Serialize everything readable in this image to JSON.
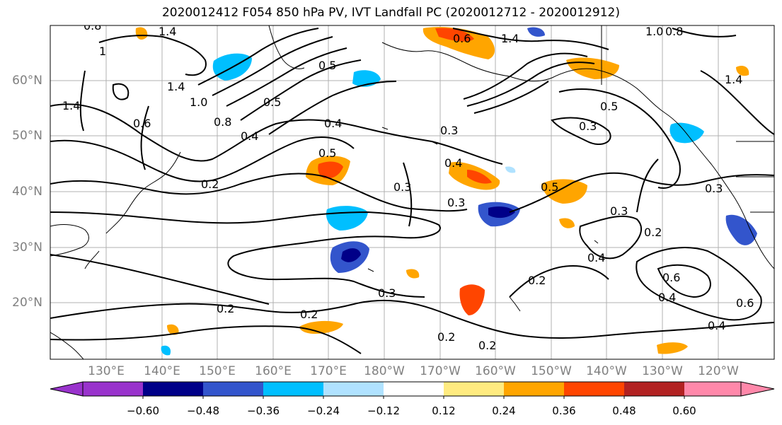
{
  "title": "2020012412 F054 850 hPa PV, IVT Landfall PC (2020012712 - 2020012912)",
  "lat_labels": [
    "60°N",
    "50°N",
    "40°N",
    "30°N",
    "20°N"
  ],
  "lon_labels": [
    "130°E",
    "140°E",
    "150°E",
    "160°E",
    "170°E",
    "180°W",
    "170°W",
    "160°W",
    "150°W",
    "140°W",
    "130°W",
    "120°W"
  ],
  "colorbar": {
    "colors": [
      "#9933cc",
      "#000088",
      "#3355cc",
      "#00bfff",
      "#b0e2ff",
      "#ffffff",
      "#ffeb80",
      "#ffa500",
      "#ff4500",
      "#b22222",
      "#ff88aa"
    ],
    "tick_labels": [
      "−0.60",
      "−0.48",
      "−0.36",
      "−0.24",
      "−0.12",
      "0.12",
      "0.24",
      "0.36",
      "0.48",
      "0.60"
    ]
  },
  "contour_labels": [
    "0.8",
    "1",
    "1.4",
    "1.4",
    "1.4",
    "1.0",
    "0.8",
    "0.5",
    "0.6",
    "0.4",
    "0.5",
    "0.4",
    "0.3",
    "0.6",
    "1.4",
    "0.3",
    "0.5",
    "0.2",
    "0.3",
    "0.4",
    "0.5",
    "0.5",
    "0.3",
    "0.3",
    "0.2",
    "0.4",
    "0.2",
    "0.3",
    "0.2",
    "0.2",
    "0.2",
    "0.6",
    "0.4",
    "0.6",
    "0.4",
    "0.2",
    "0.3",
    "1.4",
    "1.0",
    "0.8"
  ]
}
